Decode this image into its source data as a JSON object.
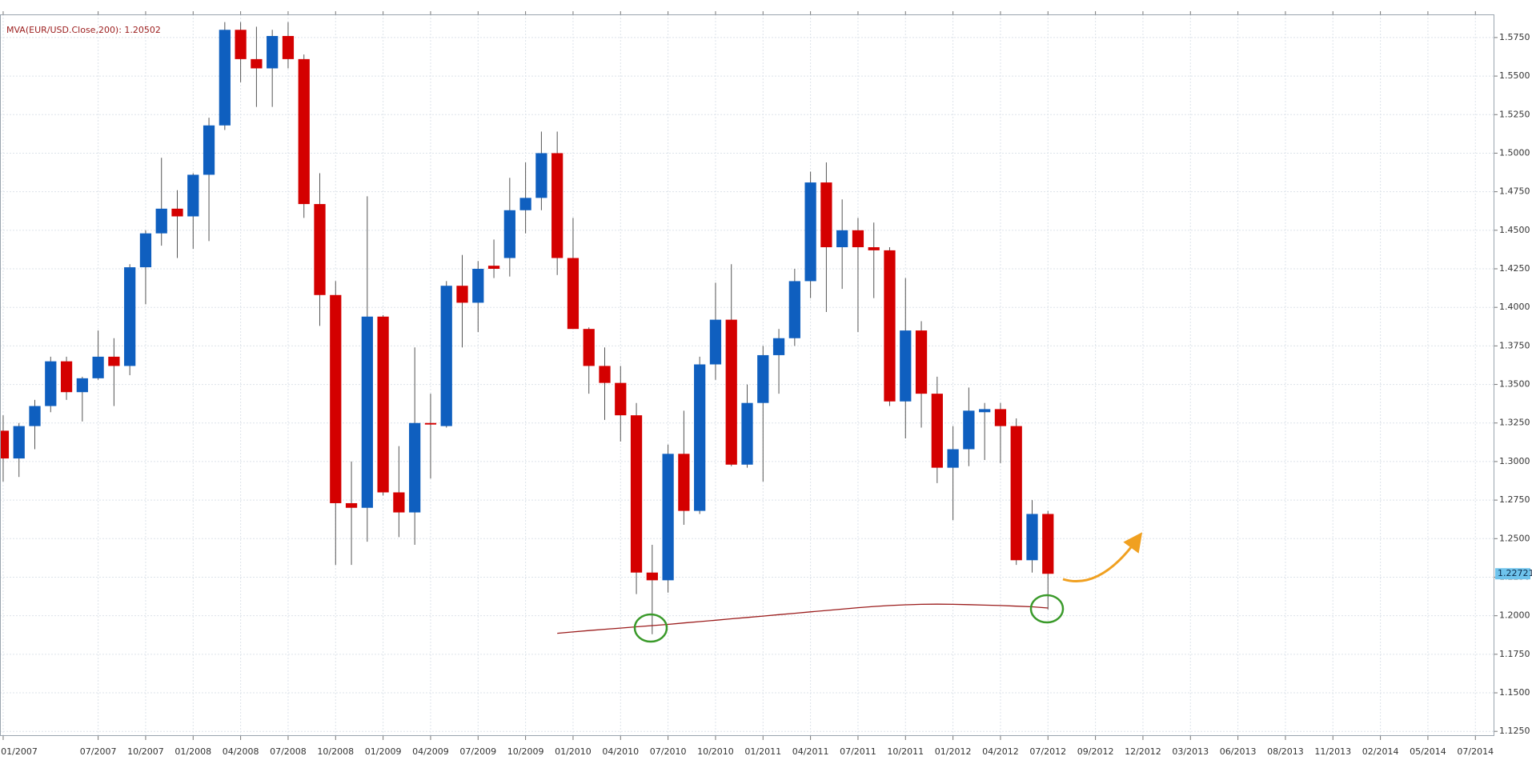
{
  "chart_data": {
    "type": "candlestick",
    "up_color": "#0f5fbf",
    "down_color": "#d40000",
    "mva_color": "#9b1c1c",
    "price_box_color": "#6ec3ec",
    "grid": true,
    "xlim": [
      -0.2,
      94.2
    ],
    "ylim": [
      1.122,
      1.59
    ],
    "xticks": [
      {
        "value": 0,
        "label": "01/2007"
      },
      {
        "value": 6,
        "label": "07/2007"
      },
      {
        "value": 9,
        "label": "10/2007"
      },
      {
        "value": 12,
        "label": "01/2008"
      },
      {
        "value": 15,
        "label": "04/2008"
      },
      {
        "value": 18,
        "label": "07/2008"
      },
      {
        "value": 21,
        "label": "10/2008"
      },
      {
        "value": 24,
        "label": "01/2009"
      },
      {
        "value": 27,
        "label": "04/2009"
      },
      {
        "value": 30,
        "label": "07/2009"
      },
      {
        "value": 33,
        "label": "10/2009"
      },
      {
        "value": 36,
        "label": "01/2010"
      },
      {
        "value": 39,
        "label": "04/2010"
      },
      {
        "value": 42,
        "label": "07/2010"
      },
      {
        "value": 45,
        "label": "10/2010"
      },
      {
        "value": 48,
        "label": "01/2011"
      },
      {
        "value": 51,
        "label": "04/2011"
      },
      {
        "value": 54,
        "label": "07/2011"
      },
      {
        "value": 57,
        "label": "10/2011"
      },
      {
        "value": 60,
        "label": "01/2012"
      },
      {
        "value": 63,
        "label": "04/2012"
      },
      {
        "value": 66,
        "label": "07/2012"
      },
      {
        "value": 69,
        "label": "09/2012"
      },
      {
        "value": 72,
        "label": "12/2012"
      },
      {
        "value": 75,
        "label": "03/2013"
      },
      {
        "value": 78,
        "label": "06/2013"
      },
      {
        "value": 81,
        "label": "08/2013"
      },
      {
        "value": 84,
        "label": "11/2013"
      },
      {
        "value": 87,
        "label": "02/2014"
      },
      {
        "value": 90,
        "label": "05/2014"
      },
      {
        "value": 93,
        "label": "07/2014"
      }
    ],
    "yticks": [
      {
        "value": 1.125,
        "label": "1.1250"
      },
      {
        "value": 1.15,
        "label": "1.1500"
      },
      {
        "value": 1.175,
        "label": "1.1750"
      },
      {
        "value": 1.2,
        "label": "1.2000"
      },
      {
        "value": 1.225,
        "label": "1.2250"
      },
      {
        "value": 1.25,
        "label": "1.2500"
      },
      {
        "value": 1.275,
        "label": "1.2750"
      },
      {
        "value": 1.3,
        "label": "1.3000"
      },
      {
        "value": 1.325,
        "label": "1.3250"
      },
      {
        "value": 1.35,
        "label": "1.3500"
      },
      {
        "value": 1.375,
        "label": "1.3750"
      },
      {
        "value": 1.4,
        "label": "1.4000"
      },
      {
        "value": 1.425,
        "label": "1.4250"
      },
      {
        "value": 1.45,
        "label": "1.4500"
      },
      {
        "value": 1.475,
        "label": "1.4750"
      },
      {
        "value": 1.5,
        "label": "1.5000"
      },
      {
        "value": 1.525,
        "label": "1.5250"
      },
      {
        "value": 1.55,
        "label": "1.5500"
      },
      {
        "value": 1.575,
        "label": "1.5750"
      }
    ],
    "open": [
      1.32,
      1.302,
      1.323,
      1.336,
      1.365,
      1.345,
      1.354,
      1.368,
      1.362,
      1.426,
      1.448,
      1.464,
      1.459,
      1.486,
      1.518,
      1.58,
      1.561,
      1.555,
      1.576,
      1.561,
      1.467,
      1.408,
      1.273,
      1.27,
      1.394,
      1.28,
      1.267,
      1.325,
      1.323,
      1.414,
      1.403,
      1.427,
      1.432,
      1.463,
      1.471,
      1.5,
      1.432,
      1.386,
      1.362,
      1.351,
      1.33,
      1.228,
      1.223,
      1.305,
      1.268,
      1.363,
      1.392,
      1.298,
      1.338,
      1.369,
      1.38,
      1.417,
      1.481,
      1.439,
      1.45,
      1.439,
      1.437,
      1.339,
      1.385,
      1.344,
      1.296,
      1.308,
      1.332,
      1.334,
      1.323,
      1.236,
      1.266
    ],
    "high": [
      1.33,
      1.325,
      1.34,
      1.368,
      1.368,
      1.355,
      1.385,
      1.38,
      1.428,
      1.45,
      1.497,
      1.476,
      1.487,
      1.523,
      1.585,
      1.585,
      1.582,
      1.58,
      1.585,
      1.564,
      1.487,
      1.417,
      1.3,
      1.472,
      1.395,
      1.31,
      1.374,
      1.344,
      1.417,
      1.434,
      1.43,
      1.444,
      1.484,
      1.494,
      1.514,
      1.514,
      1.458,
      1.387,
      1.374,
      1.362,
      1.338,
      1.246,
      1.311,
      1.333,
      1.368,
      1.416,
      1.428,
      1.35,
      1.375,
      1.386,
      1.425,
      1.488,
      1.494,
      1.47,
      1.458,
      1.455,
      1.439,
      1.419,
      1.391,
      1.355,
      1.323,
      1.348,
      1.338,
      1.338,
      1.328,
      1.275,
      1.268
    ],
    "low": [
      1.287,
      1.29,
      1.308,
      1.332,
      1.34,
      1.326,
      1.353,
      1.336,
      1.356,
      1.402,
      1.44,
      1.432,
      1.438,
      1.443,
      1.515,
      1.546,
      1.53,
      1.53,
      1.555,
      1.458,
      1.388,
      1.233,
      1.233,
      1.248,
      1.278,
      1.251,
      1.246,
      1.289,
      1.322,
      1.374,
      1.384,
      1.419,
      1.42,
      1.448,
      1.463,
      1.421,
      1.386,
      1.344,
      1.327,
      1.313,
      1.214,
      1.188,
      1.215,
      1.259,
      1.266,
      1.353,
      1.297,
      1.296,
      1.287,
      1.344,
      1.375,
      1.406,
      1.397,
      1.412,
      1.384,
      1.406,
      1.336,
      1.315,
      1.322,
      1.286,
      1.262,
      1.297,
      1.301,
      1.299,
      1.233,
      1.228,
      1.204
    ],
    "close": [
      1.302,
      1.323,
      1.336,
      1.365,
      1.345,
      1.354,
      1.368,
      1.362,
      1.426,
      1.448,
      1.464,
      1.459,
      1.486,
      1.518,
      1.58,
      1.561,
      1.555,
      1.576,
      1.561,
      1.467,
      1.408,
      1.273,
      1.27,
      1.394,
      1.28,
      1.267,
      1.325,
      1.324,
      1.414,
      1.403,
      1.425,
      1.425,
      1.463,
      1.471,
      1.5,
      1.432,
      1.386,
      1.362,
      1.351,
      1.33,
      1.228,
      1.223,
      1.305,
      1.268,
      1.363,
      1.392,
      1.298,
      1.338,
      1.369,
      1.38,
      1.417,
      1.481,
      1.439,
      1.45,
      1.439,
      1.437,
      1.339,
      1.385,
      1.344,
      1.296,
      1.308,
      1.333,
      1.334,
      1.323,
      1.236,
      1.266,
      1.22721
    ],
    "mva": {
      "name": "MVA(EUR/USD.Close,200): 1.20502",
      "values": [
        null,
        null,
        null,
        null,
        null,
        null,
        null,
        null,
        null,
        null,
        null,
        null,
        null,
        null,
        null,
        null,
        null,
        null,
        null,
        null,
        null,
        null,
        null,
        null,
        null,
        null,
        null,
        null,
        null,
        null,
        null,
        null,
        null,
        null,
        null,
        1.1886,
        1.1895,
        1.1904,
        1.1912,
        1.192,
        1.1928,
        1.1936,
        1.1944,
        1.1953,
        1.1962,
        1.1971,
        1.198,
        1.1989,
        1.1998,
        1.2007,
        1.2016,
        1.2025,
        1.2034,
        1.2043,
        1.2052,
        1.206,
        1.2066,
        1.2071,
        1.2074,
        1.2075,
        1.2074,
        1.2072,
        1.2069,
        1.2066,
        1.2062,
        1.2058,
        1.20502
      ]
    }
  }
}
